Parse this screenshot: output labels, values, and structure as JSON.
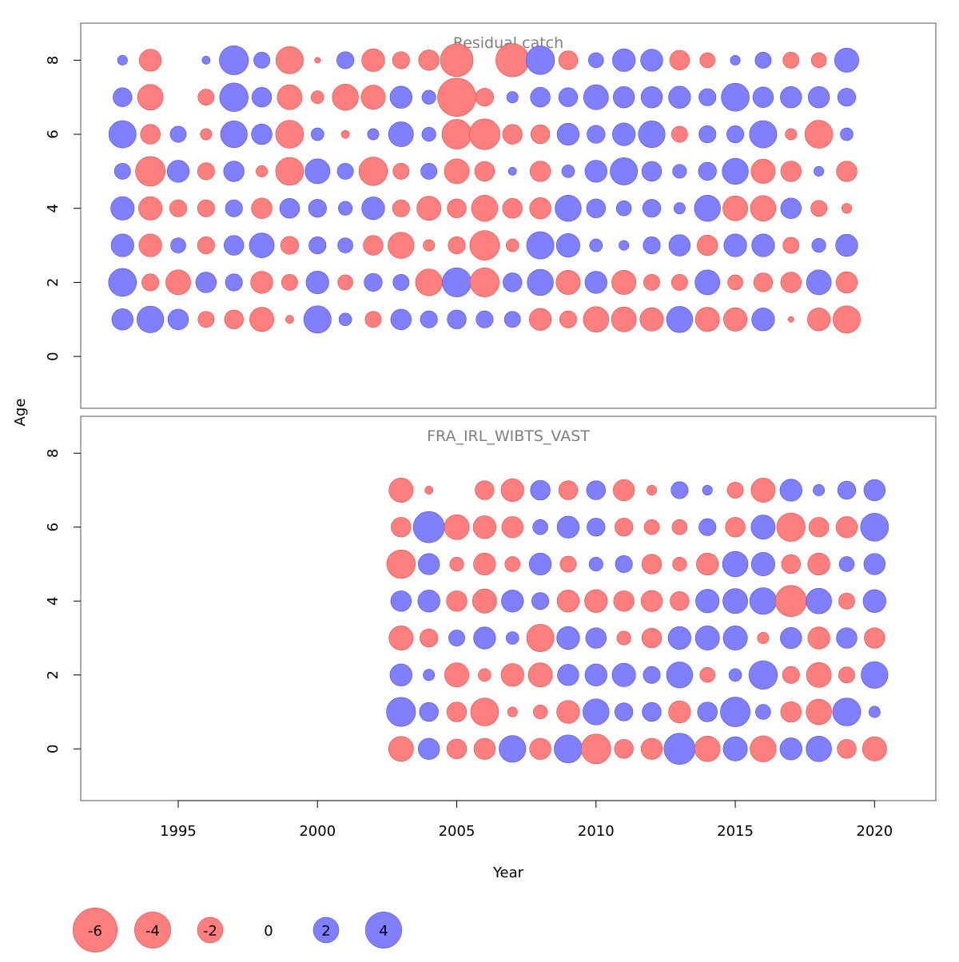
{
  "colors": {
    "negative_fill": "#ff7f7f",
    "negative_stroke": "#d94c4c",
    "positive_fill": "#7f7fff",
    "positive_stroke": "#4c4cd9",
    "panel_title": "#7f7f7f",
    "axis": "#000000"
  },
  "chart_data": [
    {
      "type": "scatter",
      "subtype": "bubble",
      "title": "Residual catch",
      "xlabel": "Year",
      "ylabel": "Age",
      "xlim": [
        1991.5,
        2022.2
      ],
      "ylim": [
        -1.4,
        9.0
      ],
      "yticks": [
        0,
        2,
        4,
        6,
        8
      ],
      "xticks": [],
      "years": [
        1993,
        1994,
        1995,
        1996,
        1997,
        1998,
        1999,
        2000,
        2001,
        2002,
        2003,
        2004,
        2005,
        2006,
        2007,
        2008,
        2009,
        2010,
        2011,
        2012,
        2013,
        2014,
        2015,
        2016,
        2017,
        2018,
        2019
      ],
      "ages": [
        1,
        2,
        3,
        4,
        5,
        6,
        7,
        8
      ],
      "residuals": {
        "8": [
          0.3,
          -1.5,
          0,
          0.2,
          2.6,
          0.8,
          -2.3,
          -0.1,
          0.9,
          -1.6,
          -0.9,
          -1.3,
          -3.3,
          0,
          -3.4,
          2.5,
          -1.1,
          0.7,
          1.6,
          1.5,
          -1.2,
          -0.7,
          0.3,
          0.8,
          -0.8,
          -0.7,
          1.8
        ],
        "7": [
          1.1,
          -2.0,
          0,
          -0.8,
          2.5,
          1.2,
          -1.9,
          -0.5,
          -2.1,
          -1.8,
          1.5,
          0.6,
          -4.5,
          -1.0,
          0.4,
          1.2,
          1.1,
          1.9,
          1.4,
          1.4,
          1.5,
          0.9,
          2.4,
          1.3,
          1.4,
          1.4,
          1.0
        ],
        "6": [
          2.3,
          -1.2,
          0.8,
          -0.4,
          2.2,
          1.3,
          -2.4,
          0.5,
          -0.2,
          0.4,
          1.9,
          0.6,
          -2.7,
          -2.9,
          -1.2,
          -1.1,
          1.5,
          1.0,
          1.6,
          2.2,
          -0.8,
          0.9,
          0.9,
          2.3,
          -0.4,
          -2.4,
          0.5
        ],
        "5": [
          0.8,
          -2.7,
          1.5,
          -0.9,
          1.3,
          -0.4,
          -2.4,
          1.9,
          0.8,
          -2.5,
          -0.8,
          0.8,
          -1.9,
          -1.2,
          0.2,
          -1.3,
          0.5,
          1.5,
          2.3,
          1.2,
          0.6,
          1.0,
          2.1,
          -1.8,
          -1.3,
          0.3,
          -1.3
        ],
        "4": [
          1.7,
          -1.7,
          -0.9,
          -0.9,
          0.9,
          -1.3,
          1.2,
          1.0,
          0.6,
          1.6,
          -0.9,
          -1.8,
          -1.1,
          -2.1,
          -1.2,
          -1.4,
          2.1,
          1.1,
          0.7,
          1.0,
          0.4,
          2.1,
          -1.9,
          -2.0,
          1.3,
          -0.8,
          -0.3
        ],
        "3": [
          1.6,
          -1.6,
          0.7,
          -0.9,
          1.2,
          1.9,
          -1.0,
          0.9,
          0.7,
          -1.2,
          -2.1,
          -0.4,
          -0.9,
          -2.7,
          -0.5,
          2.3,
          1.7,
          0.5,
          0.3,
          0.9,
          1.4,
          -1.3,
          1.6,
          1.6,
          -0.8,
          0.6,
          1.5
        ],
        "2": [
          2.4,
          -0.9,
          -1.9,
          1.3,
          0.9,
          -1.5,
          -0.8,
          1.6,
          -0.7,
          1.0,
          0.8,
          -2.2,
          2.6,
          -2.6,
          1.1,
          2.1,
          -1.8,
          1.5,
          -1.8,
          -0.8,
          -0.8,
          1.9,
          -0.7,
          -1.1,
          -1.3,
          1.9,
          -1.4
        ],
        "1": [
          1.4,
          2.2,
          1.3,
          -0.8,
          -1.1,
          -1.8,
          -0.2,
          2.3,
          0.5,
          -0.8,
          1.3,
          0.9,
          1.1,
          0.9,
          0.8,
          -1.5,
          -0.9,
          -2.0,
          -1.9,
          -1.7,
          2.1,
          -1.8,
          -1.7,
          1.6,
          -0.1,
          -1.6,
          -2.3
        ]
      }
    },
    {
      "type": "scatter",
      "subtype": "bubble",
      "title": "FRA_IRL_WIBTS_VAST",
      "xlabel": "Year",
      "ylabel": "Age",
      "xlim": [
        1991.5,
        2022.2
      ],
      "ylim": [
        -1.4,
        9.0
      ],
      "yticks": [
        0,
        2,
        4,
        6,
        8
      ],
      "xticks": [
        1995,
        2000,
        2005,
        2010,
        2015,
        2020
      ],
      "years": [
        2003,
        2004,
        2005,
        2006,
        2007,
        2008,
        2009,
        2010,
        2011,
        2012,
        2013,
        2014,
        2015,
        2016,
        2017,
        2018,
        2019,
        2020
      ],
      "ages": [
        0,
        1,
        2,
        3,
        4,
        5,
        6,
        7
      ],
      "residuals": {
        "7": [
          -1.8,
          -0.2,
          0,
          -1.1,
          -1.6,
          1.2,
          -1.1,
          1.1,
          -1.4,
          -0.3,
          0.9,
          0.3,
          -0.8,
          -1.8,
          1.5,
          0.4,
          1.0,
          1.4
        ],
        "6": [
          -1.2,
          3.0,
          -1.9,
          -1.6,
          -1.4,
          0.7,
          1.5,
          1.0,
          -1.0,
          -0.7,
          -0.7,
          0.9,
          -1.2,
          1.8,
          -2.5,
          -1.2,
          -1.4,
          2.4
        ],
        "5": [
          -2.5,
          1.4,
          -0.6,
          -1.5,
          -0.7,
          1.5,
          -0.8,
          0.6,
          0.9,
          -1.2,
          -0.6,
          -1.5,
          2.0,
          1.7,
          -1.1,
          -1.5,
          0.7,
          1.4
        ],
        "4": [
          1.3,
          1.5,
          -1.3,
          -1.8,
          1.5,
          0.9,
          -1.5,
          -1.6,
          -1.3,
          -1.4,
          -1.1,
          1.7,
          1.9,
          2.2,
          -3.0,
          2.0,
          -0.8,
          1.6
        ],
        "3": [
          -1.8,
          -1.0,
          0.8,
          1.5,
          0.5,
          -2.3,
          1.6,
          1.3,
          -0.6,
          -1.2,
          1.6,
          1.8,
          1.8,
          -0.4,
          1.4,
          -1.5,
          1.3,
          -1.3
        ],
        "2": [
          1.5,
          0.4,
          -1.8,
          -0.5,
          -1.6,
          -1.8,
          1.4,
          1.5,
          1.7,
          0.9,
          2.1,
          -0.7,
          0.5,
          2.5,
          -0.9,
          -1.9,
          -0.8,
          2.2
        ],
        "1": [
          2.6,
          1.1,
          -1.2,
          -2.4,
          -0.3,
          -0.6,
          -1.6,
          2.1,
          1.0,
          1.1,
          -1.5,
          1.2,
          2.7,
          0.7,
          -1.3,
          -2.0,
          2.4,
          0.4
        ],
        "0": [
          -1.9,
          1.4,
          -1.2,
          -1.4,
          2.2,
          -1.4,
          2.4,
          -2.7,
          -1.1,
          -1.4,
          3.0,
          -2.0,
          1.8,
          -2.1,
          1.5,
          2.0,
          -1.1,
          -1.8
        ]
      }
    }
  ],
  "legend": {
    "items": [
      {
        "label": "-6",
        "value": -6
      },
      {
        "label": "-4",
        "value": -4
      },
      {
        "label": "-2",
        "value": -2
      },
      {
        "label": "0",
        "value": 0
      },
      {
        "label": "2",
        "value": 2
      },
      {
        "label": "4",
        "value": 4
      }
    ]
  }
}
